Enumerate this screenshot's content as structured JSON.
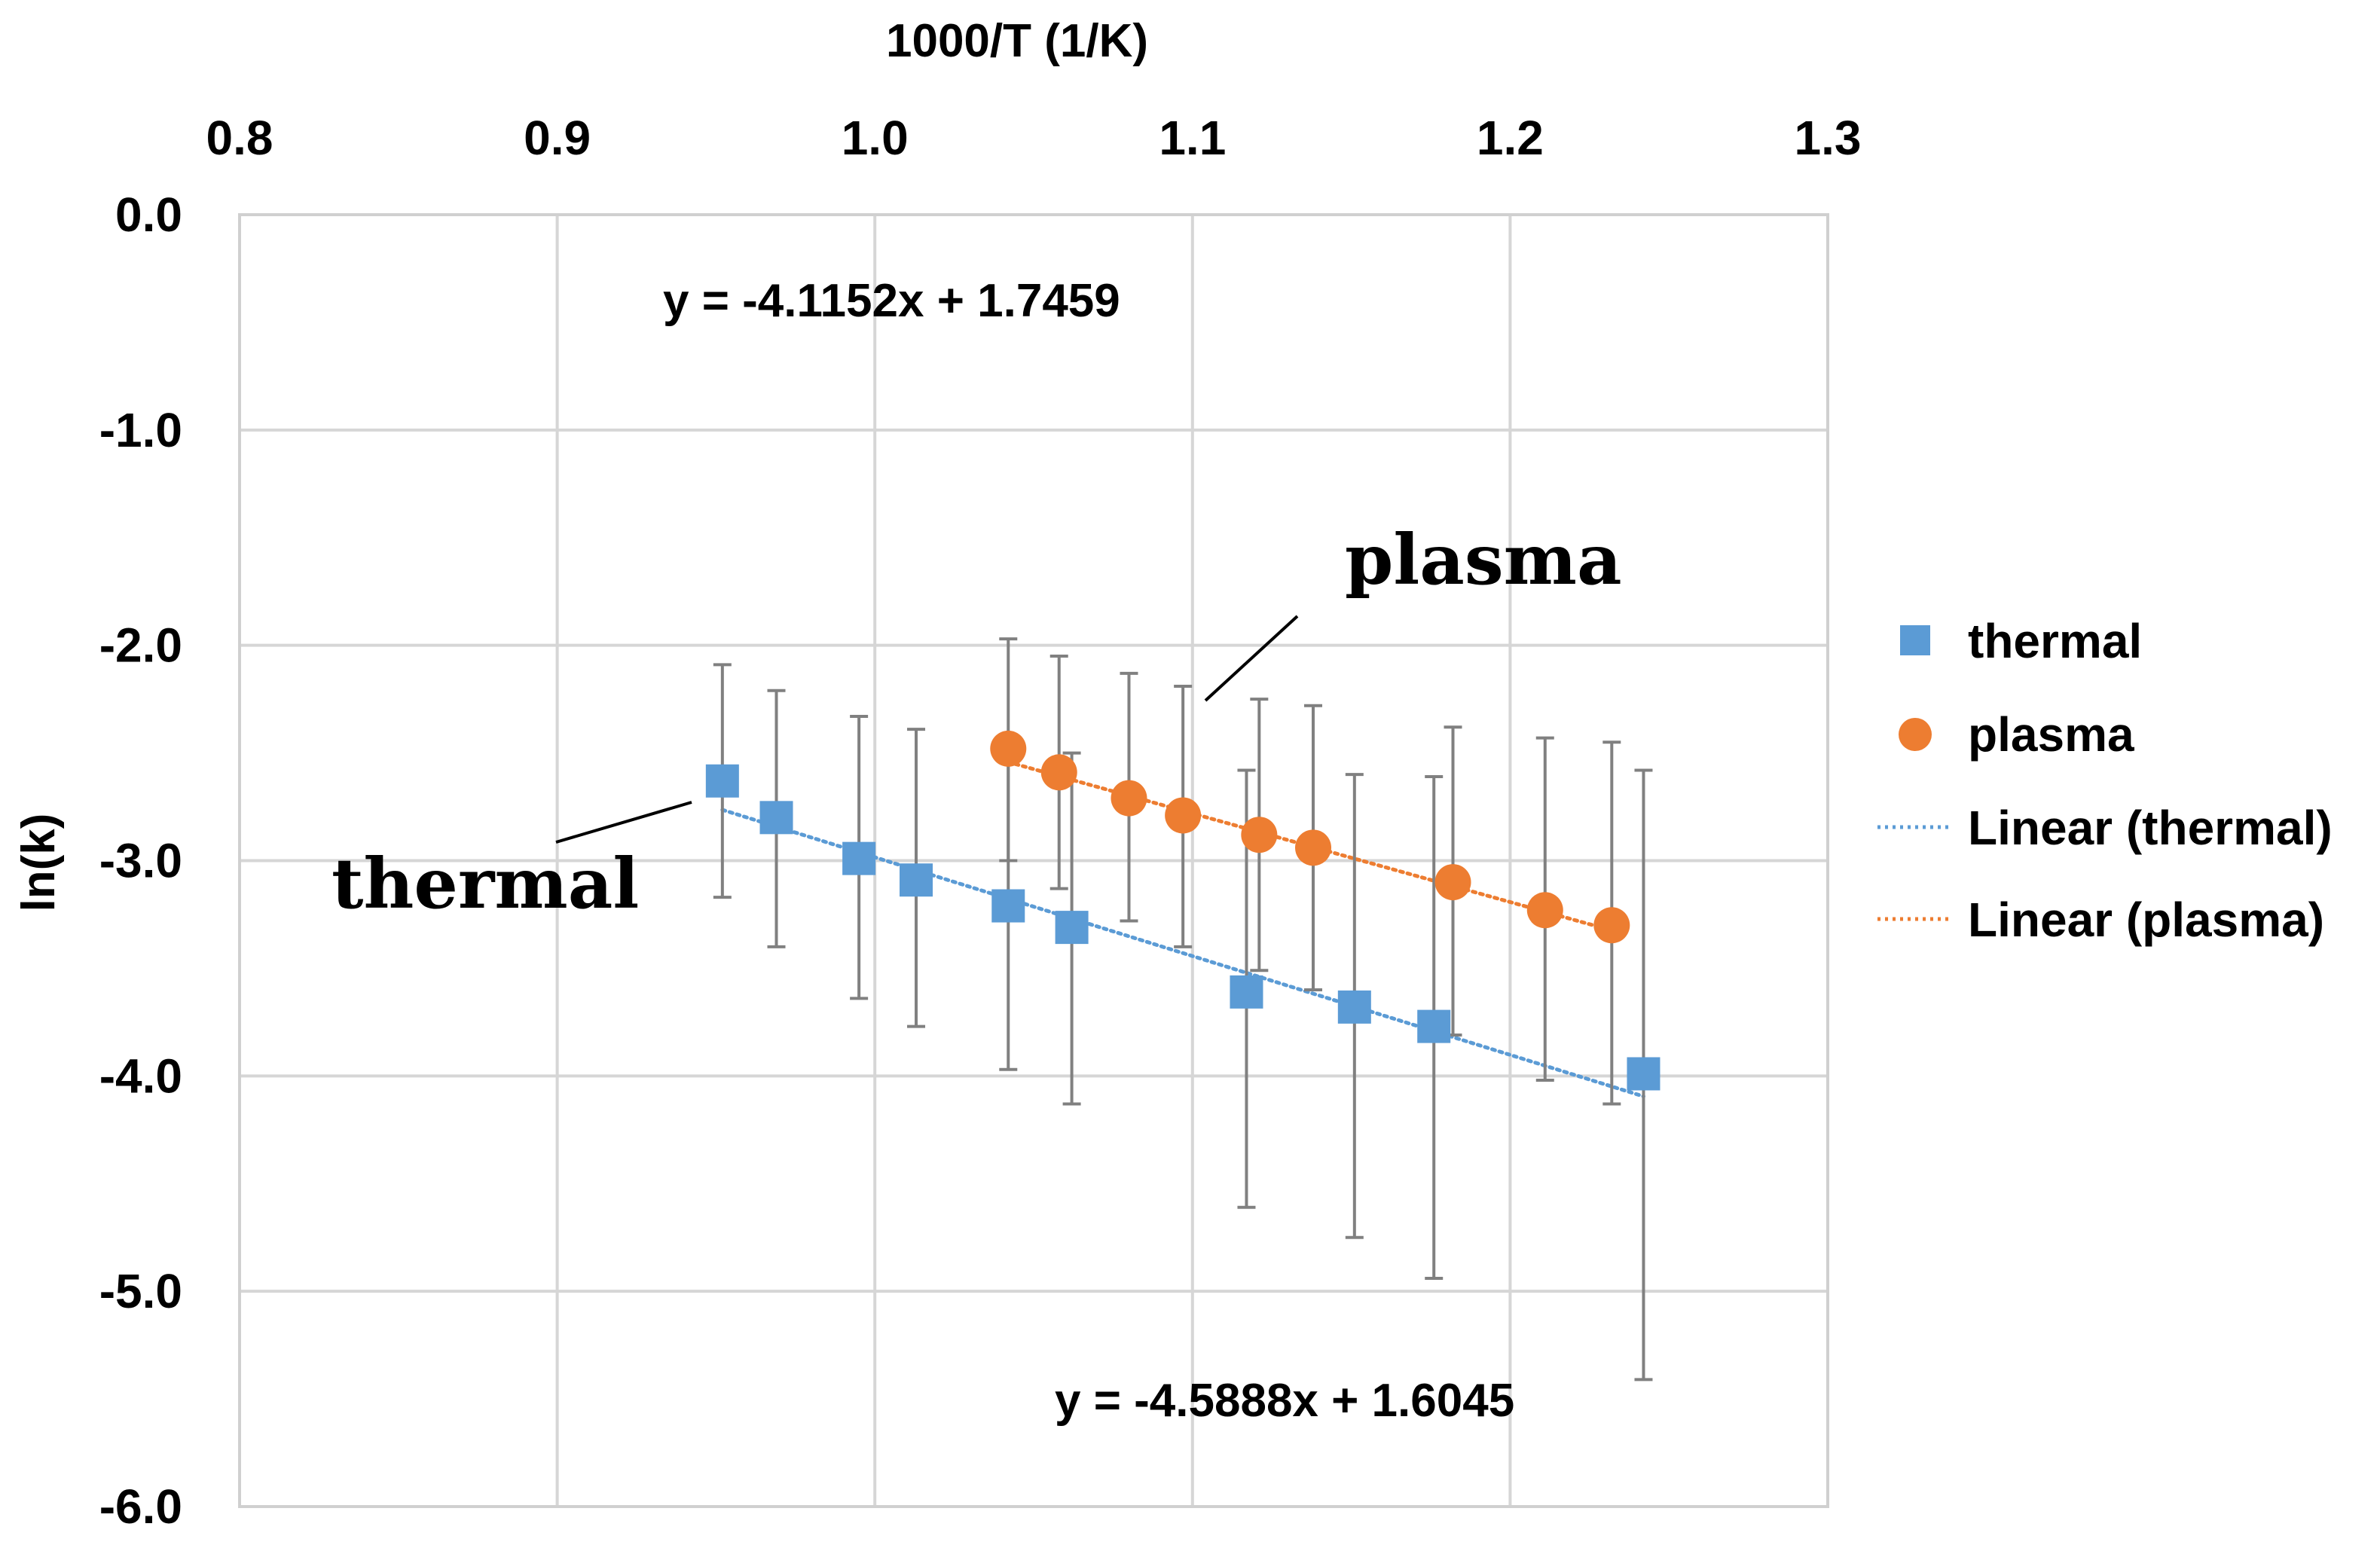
{
  "chart_data": {
    "type": "scatter",
    "title": "",
    "xlabel": "1000/T (1/K)",
    "ylabel": "ln(k)",
    "xlim": [
      0.8,
      1.3
    ],
    "ylim": [
      -6.0,
      0.0
    ],
    "x_ticks": [
      "0.8",
      "0.9",
      "1.0",
      "1.1",
      "1.2",
      "1.3"
    ],
    "y_ticks": [
      "0.0",
      "-1.0",
      "-2.0",
      "-3.0",
      "-4.0",
      "-5.0",
      "-6.0"
    ],
    "x_axis_position": "top",
    "grid": true,
    "legend_position": "right",
    "series": [
      {
        "name": "thermal",
        "marker": "square",
        "color": "#5b9bd5",
        "x": [
          0.952,
          0.969,
          0.995,
          1.013,
          1.042,
          1.062,
          1.117,
          1.151,
          1.176,
          1.242
        ],
        "y": [
          -2.63,
          -2.8,
          -2.99,
          -3.09,
          -3.21,
          -3.31,
          -3.61,
          -3.68,
          -3.77,
          -3.99
        ],
        "err_low": [
          -3.17,
          -3.4,
          -3.64,
          -3.77,
          -3.97,
          -4.13,
          -4.61,
          -4.75,
          -4.94,
          -5.41
        ],
        "err_high": [
          -2.09,
          -2.21,
          -2.33,
          -2.39,
          -2.45,
          -2.5,
          -2.58,
          -2.6,
          -2.61,
          -2.58
        ]
      },
      {
        "name": "plasma",
        "marker": "circle",
        "color": "#ed7d31",
        "x": [
          1.042,
          1.058,
          1.08,
          1.097,
          1.121,
          1.138,
          1.182,
          1.211,
          1.232
        ],
        "y": [
          -2.48,
          -2.59,
          -2.71,
          -2.79,
          -2.88,
          -2.94,
          -3.1,
          -3.23,
          -3.3
        ],
        "err_low": [
          -3.0,
          -3.13,
          -3.28,
          -3.4,
          -3.51,
          -3.6,
          -3.81,
          -4.02,
          -4.13
        ],
        "err_high": [
          -1.97,
          -2.05,
          -2.13,
          -2.19,
          -2.25,
          -2.28,
          -2.38,
          -2.43,
          -2.45
        ]
      }
    ],
    "trendlines": [
      {
        "name": "Linear (thermal)",
        "series": "thermal",
        "slope": -4.5888,
        "intercept": 1.6045,
        "x_range": [
          0.952,
          1.242
        ],
        "color": "#5b9bd5",
        "style": "dotted"
      },
      {
        "name": "Linear (plasma)",
        "series": "plasma",
        "slope": -4.1152,
        "intercept": 1.7459,
        "x_range": [
          1.042,
          1.232
        ],
        "color": "#ed7d31",
        "style": "dotted"
      }
    ],
    "legend": [
      "thermal",
      "plasma",
      "Linear (thermal)",
      "Linear (plasma)"
    ],
    "annotations": {
      "eq_plasma": "y = -4.1152x + 1.7459",
      "eq_thermal": "y = -4.5888x + 1.6045",
      "label_plasma": "plasma",
      "label_thermal": "thermal"
    }
  }
}
